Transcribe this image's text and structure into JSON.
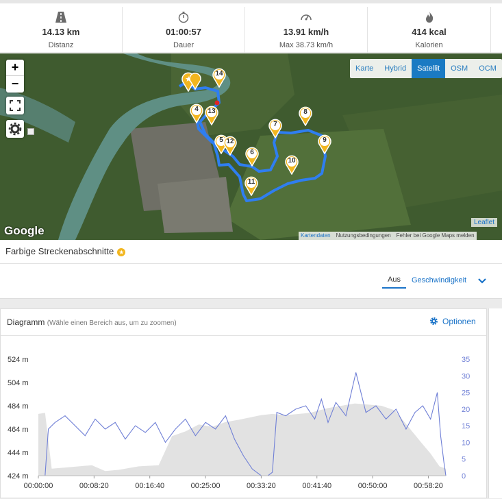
{
  "stats": [
    {
      "icon": "road-icon",
      "value": "14.13 km",
      "label": "Distanz"
    },
    {
      "icon": "stopwatch-icon",
      "value": "01:00:57",
      "label": "Dauer"
    },
    {
      "icon": "speedometer-icon",
      "value": "13.91 km/h",
      "label": "Max 38.73 km/h"
    },
    {
      "icon": "flame-icon",
      "value": "414 kcal",
      "label": "Kalorien"
    }
  ],
  "map": {
    "zoom_in": "+",
    "zoom_out": "−",
    "layers": [
      "Karte",
      "Hybrid",
      "Satellit",
      "OSM",
      "OCM"
    ],
    "active_layer": "Satellit",
    "logo": "Google",
    "leaflet": "Leaflet",
    "attribution": {
      "data": "Kartendaten",
      "terms": "Nutzungsbedingungen",
      "report": "Fehler bei Google Maps melden"
    },
    "markers": [
      "4",
      "13",
      "14",
      "5",
      "12",
      "6",
      "7",
      "8",
      "9",
      "10",
      "11"
    ]
  },
  "segments": {
    "title": "Farbige Streckenabschnitte",
    "tabs": [
      "Aus",
      "Geschwindigkeit"
    ],
    "active_tab": "Aus"
  },
  "chart_card": {
    "title": "Diagramm",
    "hint": "(Wähle einen Bereich aus, um zu zoomen)",
    "options": "Optionen"
  },
  "colors": {
    "accent": "#1a73c8",
    "route": "#2f7ef0",
    "marker": "#f2b61f",
    "speed_line": "#6f7fd6",
    "elevation_area": "#e2e2e2"
  },
  "chart_data": {
    "type": "area",
    "xlabel": "",
    "x_ticks": [
      "00:00:00",
      "00:08:20",
      "00:16:40",
      "00:25:00",
      "00:33:20",
      "00:41:40",
      "00:50:00",
      "00:58:20"
    ],
    "elevation_ticks": [
      "424 m",
      "444 m",
      "464 m",
      "484 m",
      "504 m",
      "524 m"
    ],
    "speed_ticks": [
      "0",
      "5",
      "10",
      "15",
      "20",
      "25",
      "30",
      "35"
    ],
    "elevation_ylim": [
      424,
      524
    ],
    "speed_ylim": [
      0,
      35
    ],
    "x_range_sec": [
      0,
      3657
    ],
    "series": [
      {
        "name": "",
        "axis": "left",
        "x_sec": [
          0,
          60,
          120,
          240,
          480,
          600,
          720,
          900,
          1080,
          1200,
          1320,
          1440,
          1560,
          1680,
          1800,
          1900,
          2000,
          2100,
          2220,
          2340,
          2440,
          2520,
          2600,
          2720,
          2840,
          2960,
          3080,
          3200,
          3320,
          3440,
          3520,
          3600,
          3657
        ],
        "values": [
          477,
          478,
          430,
          431,
          433,
          428,
          429,
          432,
          433,
          458,
          462,
          468,
          466,
          470,
          472,
          474,
          476,
          477,
          476,
          477,
          478,
          480,
          482,
          484,
          486,
          485,
          484,
          480,
          466,
          452,
          443,
          432,
          430
        ]
      },
      {
        "name": "",
        "axis": "right",
        "x_sec": [
          0,
          60,
          90,
          150,
          240,
          330,
          420,
          510,
          600,
          690,
          780,
          870,
          960,
          1050,
          1140,
          1230,
          1320,
          1410,
          1500,
          1590,
          1680,
          1760,
          1840,
          1920,
          2000,
          2060,
          2100,
          2140,
          2220,
          2310,
          2400,
          2480,
          2540,
          2600,
          2670,
          2760,
          2850,
          2940,
          3030,
          3120,
          3210,
          3300,
          3380,
          3450,
          3520,
          3580,
          3610,
          3640,
          3657
        ],
        "values": [
          0,
          0,
          14,
          16,
          18,
          15,
          12,
          17,
          14,
          16,
          11,
          15,
          13,
          16,
          10,
          14,
          17,
          12,
          16,
          14,
          18,
          11,
          6,
          2,
          0,
          0,
          1,
          19,
          18,
          20,
          21,
          17,
          23,
          16,
          22,
          18,
          31,
          19,
          21,
          17,
          20,
          14,
          19,
          21,
          17,
          25,
          12,
          4,
          0
        ]
      }
    ]
  }
}
